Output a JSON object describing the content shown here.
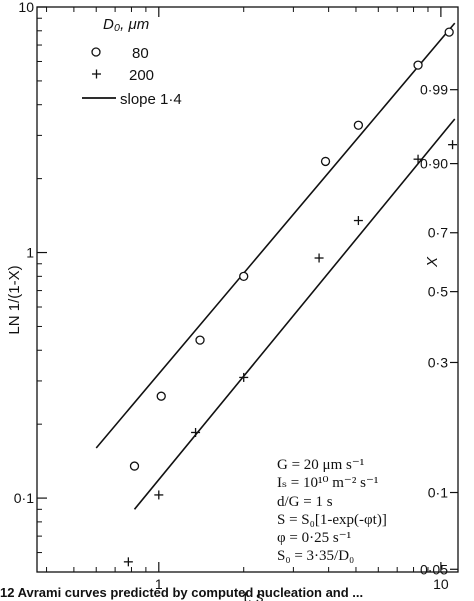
{
  "chart_data": {
    "type": "scatter",
    "xscale": "log",
    "yscale": "log",
    "xlim": [
      0.37,
      11.5
    ],
    "ylim": [
      0.05,
      10
    ],
    "xlabel": "t, s",
    "ylabel": "LN 1/(1-X)",
    "y2label": "X",
    "x_ticks": [
      1,
      10
    ],
    "x_tick_labels": [
      "1",
      "10"
    ],
    "y_ticks": [
      0.1,
      1,
      10
    ],
    "y_tick_labels": [
      "0·1",
      "1",
      "10"
    ],
    "y2_ticks": [
      0.05,
      0.1,
      0.3,
      0.5,
      0.7,
      0.9,
      0.99
    ],
    "y2_tick_labels": [
      "0·05",
      "0·1",
      "0·3",
      "0·5",
      "0·7",
      "0·90",
      "0·99"
    ],
    "legend": {
      "title": "D₀, μm",
      "placement": "top-left",
      "entries": [
        {
          "marker": "circle",
          "label": "80"
        },
        {
          "marker": "plus",
          "label": "200"
        },
        {
          "marker": "line",
          "label": "slope 1·4"
        }
      ]
    },
    "series": [
      {
        "name": "80",
        "marker": "circle",
        "points": [
          [
            0.82,
            0.135
          ],
          [
            1.02,
            0.26
          ],
          [
            1.4,
            0.44
          ],
          [
            2.0,
            0.8
          ],
          [
            3.9,
            2.35
          ],
          [
            5.1,
            3.3
          ],
          [
            8.3,
            5.8
          ],
          [
            10.7,
            7.9
          ]
        ],
        "fit": {
          "x": [
            0.6,
            11.2
          ],
          "y": [
            0.16,
            8.6
          ]
        }
      },
      {
        "name": "200",
        "marker": "plus",
        "points": [
          [
            0.78,
            0.055
          ],
          [
            1.0,
            0.103
          ],
          [
            1.35,
            0.185
          ],
          [
            2.0,
            0.31
          ],
          [
            3.7,
            0.95
          ],
          [
            5.1,
            1.35
          ],
          [
            8.3,
            2.4
          ],
          [
            11.0,
            2.75
          ]
        ],
        "fit": {
          "x": [
            0.82,
            11.2
          ],
          "y": [
            0.09,
            3.5
          ]
        }
      }
    ],
    "annotations": [
      "G  = 20 μm s⁻¹",
      "Iₛ = 10¹⁰ m⁻² s⁻¹",
      "d/G = 1 s",
      "S  = S₀[1-exp(-φt)]",
      "φ  = 0·25 s⁻¹",
      "S₀ = 3·35/D₀"
    ],
    "caption": "12  Avrami curves predicted by computed nucleation and ..."
  }
}
